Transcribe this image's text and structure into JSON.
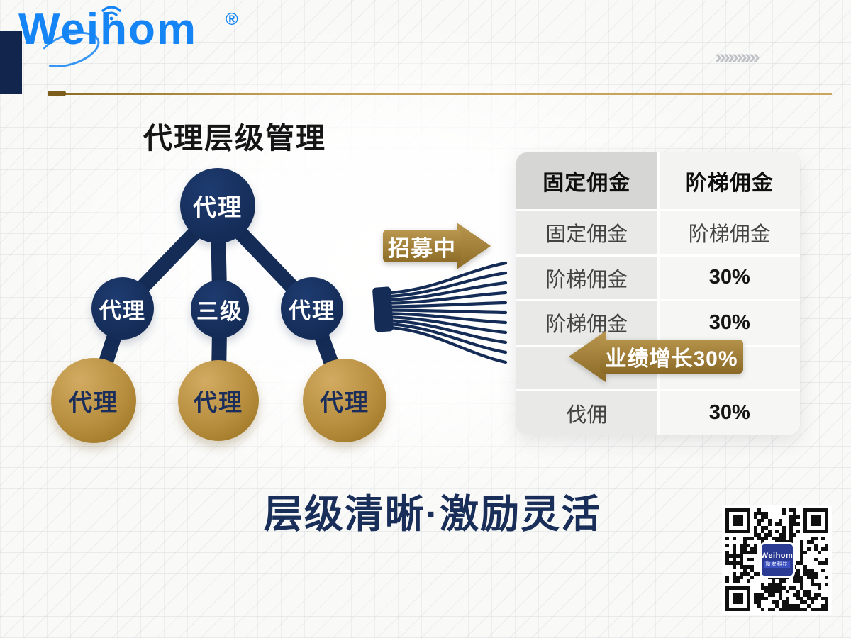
{
  "brand": {
    "name": "Weihom",
    "registered": "®"
  },
  "decor": {
    "chevrons": "››››››››››"
  },
  "diagram": {
    "title": "代理层级管理",
    "root": "代理",
    "level2": [
      "代理",
      "三级",
      "代理"
    ],
    "level3": [
      "代理",
      "代理",
      "代理"
    ]
  },
  "labels": {
    "recruiting": "招募中",
    "growth": "业绩增长30%"
  },
  "table": {
    "header": [
      "固定佣金",
      "阶梯佣金"
    ],
    "rows": [
      [
        "固定佣金",
        "阶梯佣金"
      ],
      [
        "阶梯佣金",
        "30%"
      ],
      [
        "阶梯佣金",
        "30%"
      ],
      [
        "",
        ""
      ],
      [
        "伐佣",
        "30%"
      ]
    ]
  },
  "tagline": "层级清晰·激励灵活",
  "qr": {
    "label": "Weihom",
    "sublabel": "微宏科技"
  },
  "colors": {
    "navy": "#16305c",
    "gold": "#a8833a",
    "logo_blue": "#1584f4"
  }
}
